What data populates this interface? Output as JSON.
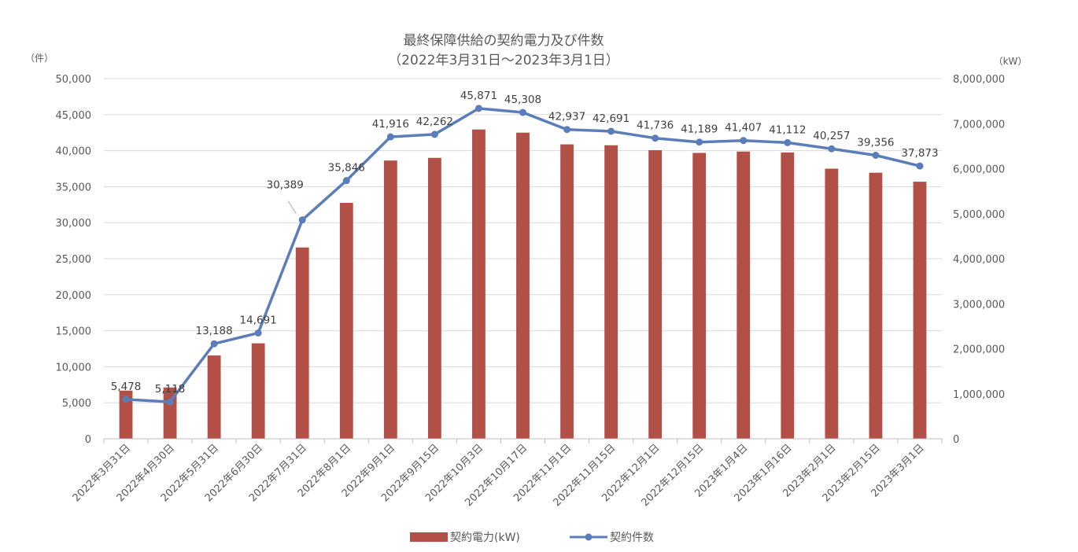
{
  "chart_data": {
    "type": "bar+line",
    "title": "最終保障供給の契約電力及び件数",
    "subtitle": "（2022年3月31日～2023年3月1日）",
    "left_unit": "（件）",
    "right_unit": "（kW）",
    "categories": [
      "2022年3月31日",
      "2022年4月30日",
      "2022年5月31日",
      "2022年6月30日",
      "2022年7月31日",
      "2022年8月1日",
      "2022年9月1日",
      "2022年9月15日",
      "2022年10月3日",
      "2022年10月17日",
      "2022年11月1日",
      "2022年11月15日",
      "2022年12月1日",
      "2022年12月15日",
      "2023年1月4日",
      "2023年1月16日",
      "2023年2月1日",
      "2023年2月15日",
      "2023年3月1日"
    ],
    "left_ylim": [
      0,
      50000
    ],
    "left_ticks": [
      0,
      5000,
      10000,
      15000,
      20000,
      25000,
      30000,
      35000,
      40000,
      45000,
      50000
    ],
    "left_tick_labels": [
      "0",
      "5,000",
      "10,000",
      "15,000",
      "20,000",
      "25,000",
      "30,000",
      "35,000",
      "40,000",
      "45,000",
      "50,000"
    ],
    "right_ylim": [
      0,
      8000000
    ],
    "right_ticks": [
      0,
      1000000,
      2000000,
      3000000,
      4000000,
      5000000,
      6000000,
      7000000,
      8000000
    ],
    "right_tick_labels": [
      "0",
      "1,000,000",
      "2,000,000",
      "3,000,000",
      "4,000,000",
      "5,000,000",
      "6,000,000",
      "7,000,000",
      "8,000,000"
    ],
    "grid": true,
    "legend_position": "bottom",
    "series": [
      {
        "name": "契約電力(kW)",
        "type": "bar",
        "axis": "right",
        "color": "#b24f47",
        "values": [
          1070000,
          1140000,
          1850000,
          2120000,
          4250000,
          5240000,
          6180000,
          6240000,
          6870000,
          6800000,
          6540000,
          6520000,
          6410000,
          6350000,
          6380000,
          6360000,
          6000000,
          5910000,
          5710000
        ]
      },
      {
        "name": "契約件数",
        "type": "line",
        "axis": "left",
        "color": "#5b7db9",
        "values": [
          5478,
          5118,
          13188,
          14691,
          30389,
          35846,
          41916,
          42262,
          45871,
          45308,
          42937,
          42691,
          41736,
          41189,
          41407,
          41112,
          40257,
          39356,
          37873
        ],
        "data_labels": [
          "5,478",
          "5,118",
          "13,188",
          "14,691",
          "30,389",
          "35,846",
          "41,916",
          "42,262",
          "45,871",
          "45,308",
          "42,937",
          "42,691",
          "41,736",
          "41,189",
          "41,407",
          "41,112",
          "40,257",
          "39,356",
          "37,873"
        ]
      }
    ]
  }
}
